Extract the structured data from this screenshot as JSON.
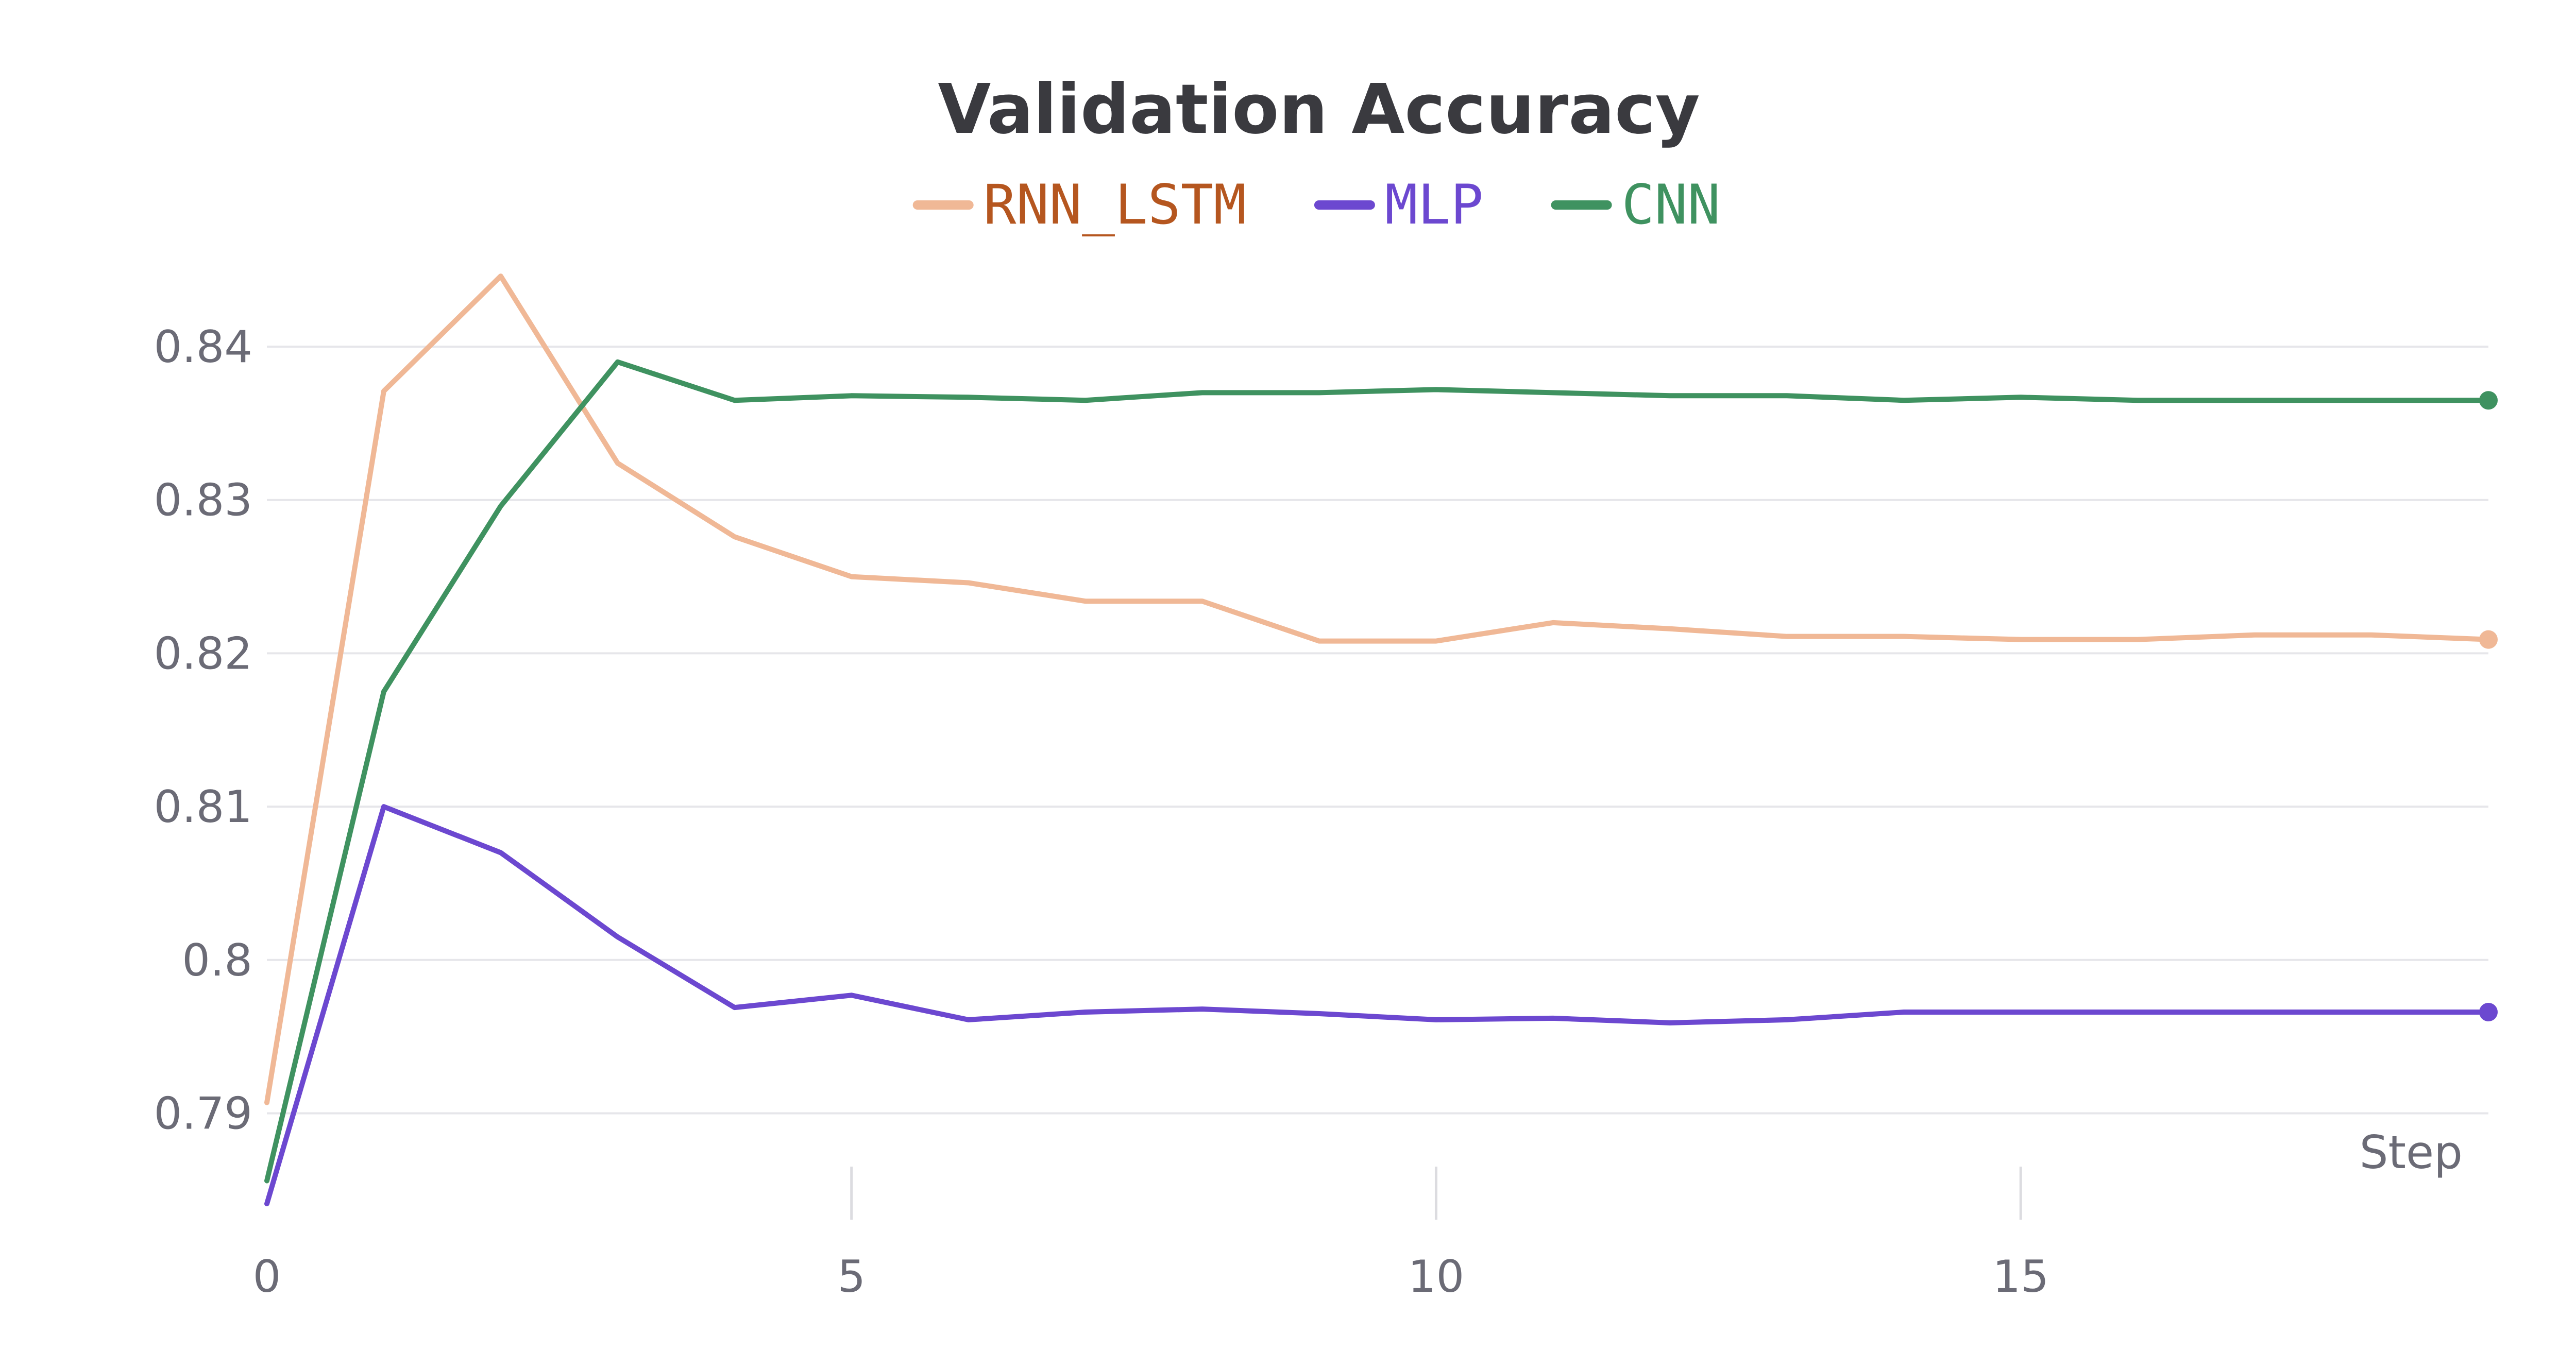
{
  "chart_data": {
    "type": "line",
    "title": "Validation Accuracy",
    "xlabel": "Step",
    "ylabel": "",
    "xlim": [
      0,
      19
    ],
    "ylim": [
      0.7835,
      0.8485
    ],
    "xticks": [
      0,
      5,
      10,
      15
    ],
    "xtick_labels": [
      "0",
      "5",
      "10",
      "15"
    ],
    "yticks": [
      0.79,
      0.8,
      0.81,
      0.82,
      0.83,
      0.84
    ],
    "ytick_labels": [
      "0.79",
      "0.8",
      "0.81",
      "0.82",
      "0.83",
      "0.84"
    ],
    "grid": true,
    "legend_position": "top-center",
    "x": [
      0,
      1,
      2,
      3,
      4,
      5,
      6,
      7,
      8,
      9,
      10,
      11,
      12,
      13,
      14,
      15,
      16,
      17,
      18,
      19
    ],
    "series": [
      {
        "name": "RNN_LSTM",
        "color": "#f0b896",
        "label_color": "#b5561f",
        "values": [
          0.7907,
          0.8371,
          0.8446,
          0.8324,
          0.8276,
          0.825,
          0.8246,
          0.8234,
          0.8234,
          0.8208,
          0.8208,
          0.822,
          0.8216,
          0.8211,
          0.8211,
          0.8209,
          0.8209,
          0.8212,
          0.8212,
          0.8209
        ]
      },
      {
        "name": "MLP",
        "color": "#6c48d0",
        "label_color": "#6c48d0",
        "values": [
          0.7841,
          0.81,
          0.807,
          0.8015,
          0.7969,
          0.7977,
          0.7961,
          0.7966,
          0.7968,
          0.7965,
          0.7961,
          0.7962,
          0.7959,
          0.7961,
          0.7966,
          0.7966,
          0.7966,
          0.7966,
          0.7966,
          0.7966
        ]
      },
      {
        "name": "CNN",
        "color": "#3f9260",
        "label_color": "#3f9260",
        "values": [
          0.7856,
          0.8175,
          0.8296,
          0.839,
          0.8365,
          0.8368,
          0.8367,
          0.8365,
          0.837,
          0.837,
          0.8372,
          0.837,
          0.8368,
          0.8368,
          0.8365,
          0.8367,
          0.8365,
          0.8365,
          0.8365,
          0.8365
        ]
      }
    ]
  }
}
